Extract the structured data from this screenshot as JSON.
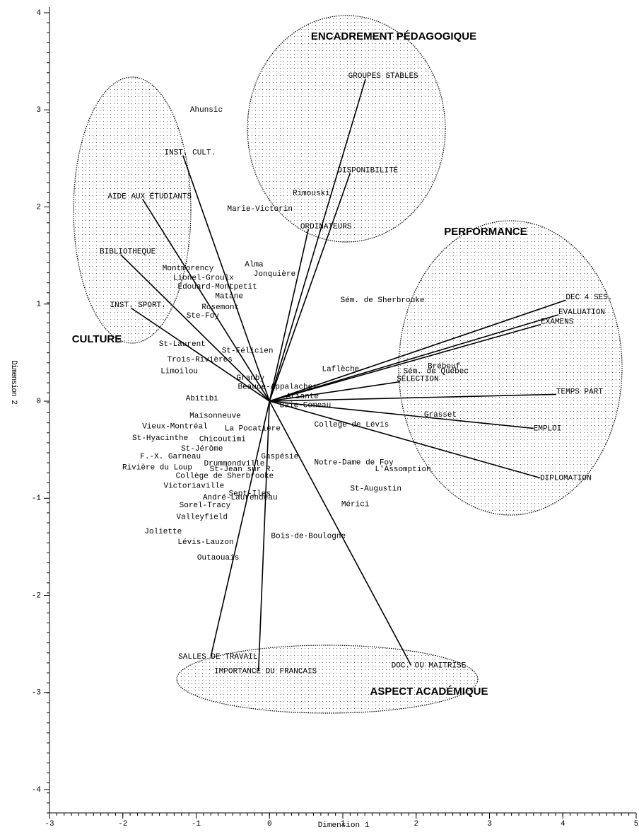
{
  "chart_data": {
    "type": "biplot",
    "x_label": "Dimension 1",
    "y_label": "Dimension 2",
    "xlim": [
      -3,
      5
    ],
    "ylim": [
      -4.24,
      4
    ],
    "xticks": [
      -3,
      -2,
      -1,
      0,
      1,
      2,
      3,
      4,
      5
    ],
    "yticks": [
      -4,
      -3,
      -2,
      -1,
      0,
      1,
      2,
      3,
      4
    ],
    "annotations": [
      "ENCADREMENT PÉDAGOGIQUE",
      "CULTURE",
      "PERFORMANCE",
      "ASPECT ACADÉMIQUE"
    ],
    "vectors": [
      {
        "label": "GROUPES STABLES",
        "x": 1.31,
        "y": 3.32
      },
      {
        "label": "DISPONIBILITÉ",
        "x": 1.1,
        "y": 2.35
      },
      {
        "label": "ORDINATEURS",
        "x": 0.53,
        "y": 1.77
      },
      {
        "label": "INST. CULT.",
        "x": -1.18,
        "y": 2.53
      },
      {
        "label": "AIDE AUX ÉTUDIANTS",
        "x": -1.73,
        "y": 2.08
      },
      {
        "label": "BIBLIOTHEQUE",
        "x": -2.03,
        "y": 1.51
      },
      {
        "label": "INST. SPORT.",
        "x": -1.89,
        "y": 0.96
      },
      {
        "label": "DEC 4 SES.",
        "x": 4.04,
        "y": 1.04
      },
      {
        "label": "EVALUATION",
        "x": 3.94,
        "y": 0.89
      },
      {
        "label": "EXAMENS",
        "x": 3.7,
        "y": 0.79
      },
      {
        "label": "SÉLECTION",
        "x": 1.78,
        "y": 0.2
      },
      {
        "label": "TEMPS PART",
        "x": 3.91,
        "y": 0.07
      },
      {
        "label": "EMPLOI",
        "x": 3.6,
        "y": -0.28
      },
      {
        "label": "DIPLOMATION",
        "x": 3.69,
        "y": -0.79
      },
      {
        "label": "DOC. OU MAITRISE",
        "x": 1.93,
        "y": -2.72
      },
      {
        "label": "SALLES DE TRAVAIL",
        "x": -0.8,
        "y": -2.63
      },
      {
        "label": "IMPORTANCE DU FRANCAIS",
        "x": -0.15,
        "y": -2.78
      }
    ],
    "points": [
      {
        "label": "Ahunsic",
        "x": -0.86,
        "y": 3.0
      },
      {
        "label": "Rimouski",
        "x": 0.57,
        "y": 2.14
      },
      {
        "label": "Marie-Victorin",
        "x": -0.13,
        "y": 1.98
      },
      {
        "label": "Montmorency",
        "x": -1.11,
        "y": 1.37
      },
      {
        "label": "Alma",
        "x": -0.21,
        "y": 1.41
      },
      {
        "label": "Jonquière",
        "x": 0.07,
        "y": 1.31
      },
      {
        "label": "Lionel-Groulx",
        "x": -0.9,
        "y": 1.27
      },
      {
        "label": "Édouard-Montpetit",
        "x": -0.71,
        "y": 1.18
      },
      {
        "label": "Matane",
        "x": -0.55,
        "y": 1.08
      },
      {
        "label": "Rosemont",
        "x": -0.67,
        "y": 0.97
      },
      {
        "label": "Ste-Foy",
        "x": -0.91,
        "y": 0.88
      },
      {
        "label": "Sém. de Sherbrooke",
        "x": 1.54,
        "y": 1.04
      },
      {
        "label": "St-Laurent",
        "x": -1.19,
        "y": 0.59
      },
      {
        "label": "St-Félicien",
        "x": -0.3,
        "y": 0.52
      },
      {
        "label": "Trois-Rivières",
        "x": -0.95,
        "y": 0.43
      },
      {
        "label": "Limoilou",
        "x": -1.23,
        "y": 0.31
      },
      {
        "label": "Granby",
        "x": -0.26,
        "y": 0.24
      },
      {
        "label": "Laflèche",
        "x": 0.97,
        "y": 0.33
      },
      {
        "label": "Brébeuf",
        "x": 2.38,
        "y": 0.36
      },
      {
        "label": "Sém. de Québec",
        "x": 2.27,
        "y": 0.31
      },
      {
        "label": "Beauce-Appalaches",
        "x": 0.11,
        "y": 0.15
      },
      {
        "label": "Ariante",
        "x": 0.45,
        "y": 0.05
      },
      {
        "label": "Abitibi",
        "x": -0.92,
        "y": 0.03
      },
      {
        "label": "Baie-Comeau",
        "x": 0.49,
        "y": -0.04
      },
      {
        "label": "Maisonneuve",
        "x": -0.74,
        "y": -0.15
      },
      {
        "label": "Vieux-Montréal",
        "x": -1.29,
        "y": -0.26
      },
      {
        "label": "La Pocatière",
        "x": -0.23,
        "y": -0.28
      },
      {
        "label": "Grasset",
        "x": 2.33,
        "y": -0.14
      },
      {
        "label": "College de Lévis",
        "x": 1.12,
        "y": -0.24
      },
      {
        "label": "St-Hyacinthe",
        "x": -1.49,
        "y": -0.38
      },
      {
        "label": "Chicoutimi",
        "x": -0.64,
        "y": -0.39
      },
      {
        "label": "St-Jérôme",
        "x": -0.92,
        "y": -0.49
      },
      {
        "label": "F.-X. Garneau",
        "x": -1.35,
        "y": -0.57
      },
      {
        "label": "Gaspésie",
        "x": 0.14,
        "y": -0.57
      },
      {
        "label": "Drummondville",
        "x": -0.48,
        "y": -0.64
      },
      {
        "label": "Notre-Dame de Foy",
        "x": 1.15,
        "y": -0.63
      },
      {
        "label": "Rivière du Loup",
        "x": -1.53,
        "y": -0.68
      },
      {
        "label": "St-Jean sur R.",
        "x": -0.37,
        "y": -0.7
      },
      {
        "label": "L'Assomption",
        "x": 1.82,
        "y": -0.7
      },
      {
        "label": "Collège de Sherbrooke",
        "x": -0.61,
        "y": -0.77
      },
      {
        "label": "Victoriaville",
        "x": -1.03,
        "y": -0.87
      },
      {
        "label": "St-Augustin",
        "x": 1.45,
        "y": -0.9
      },
      {
        "label": "Sept-Iles",
        "x": -0.27,
        "y": -0.95
      },
      {
        "label": "André-Laurendeau",
        "x": -0.4,
        "y": -0.99
      },
      {
        "label": "Sorel-Tracy",
        "x": -0.88,
        "y": -1.07
      },
      {
        "label": "Mérici",
        "x": 1.17,
        "y": -1.06
      },
      {
        "label": "Valleyfield",
        "x": -0.92,
        "y": -1.19
      },
      {
        "label": "Joliette",
        "x": -1.45,
        "y": -1.34
      },
      {
        "label": "Bois-de-Boulogne",
        "x": 0.53,
        "y": -1.39
      },
      {
        "label": "Lévis-Lauzon",
        "x": -0.87,
        "y": -1.45
      },
      {
        "label": "Outaouais",
        "x": -0.7,
        "y": -1.61
      }
    ]
  }
}
